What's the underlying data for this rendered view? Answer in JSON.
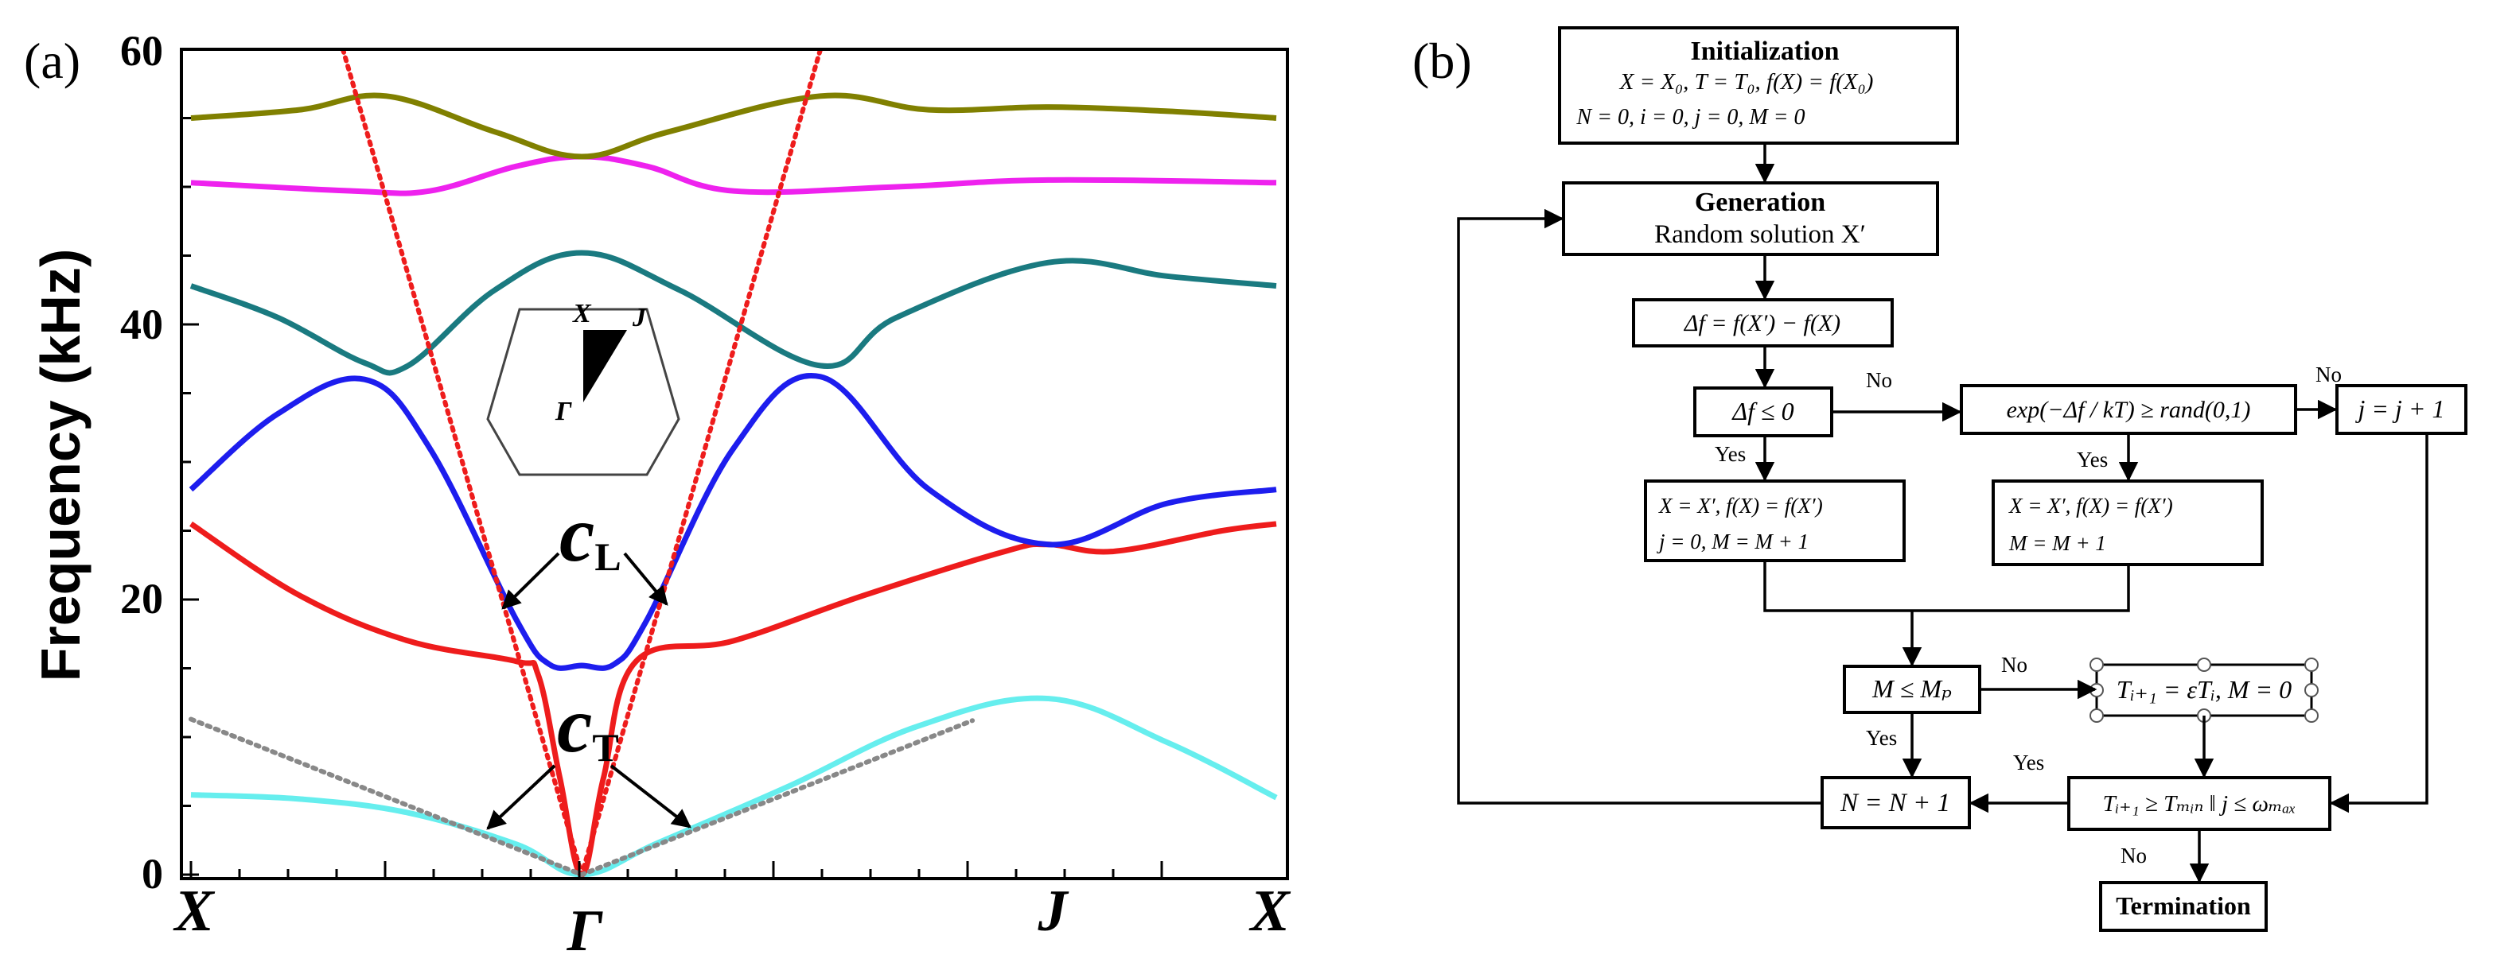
{
  "panel_a": {
    "label": "(a)",
    "ylabel": "Frequency (kHz)",
    "yticks": [
      "0",
      "20",
      "40",
      "60"
    ],
    "xticks": [
      "X",
      "Γ",
      "J",
      "X"
    ],
    "inset": {
      "X": "X",
      "J": "J",
      "G": "Γ"
    },
    "cL": {
      "main": "c",
      "sub": "L"
    },
    "cT": {
      "main": "c",
      "sub": "T"
    }
  },
  "chart_data": {
    "type": "line",
    "title": "",
    "xlabel": "",
    "ylabel": "Frequency (kHz)",
    "ylim": [
      0,
      60
    ],
    "xlim": [
      0,
      1
    ],
    "x_ticks": [
      {
        "label": "X",
        "x": 0.0
      },
      {
        "label": "Γ",
        "x": 0.36
      },
      {
        "label": "J",
        "x": 0.79
      },
      {
        "label": "X",
        "x": 1.0
      }
    ],
    "series": [
      {
        "name": "band1",
        "color": "#66eeee",
        "points": [
          [
            0,
            5.8
          ],
          [
            0.1,
            5.5
          ],
          [
            0.2,
            4.5
          ],
          [
            0.3,
            2.2
          ],
          [
            0.36,
            0
          ],
          [
            0.43,
            2.3
          ],
          [
            0.55,
            6.4
          ],
          [
            0.67,
            10.8
          ],
          [
            0.79,
            12.8
          ],
          [
            0.9,
            9.6
          ],
          [
            1.0,
            5.6
          ]
        ]
      },
      {
        "name": "band2",
        "color": "#ee1c1c",
        "points": [
          [
            0,
            25.5
          ],
          [
            0.1,
            20.3
          ],
          [
            0.2,
            17
          ],
          [
            0.3,
            15.5
          ],
          [
            0.32,
            14.5
          ],
          [
            0.34,
            7
          ],
          [
            0.36,
            0
          ],
          [
            0.38,
            7
          ],
          [
            0.41,
            15.5
          ],
          [
            0.5,
            17
          ],
          [
            0.62,
            20.3
          ],
          [
            0.75,
            23.5
          ],
          [
            0.79,
            24
          ],
          [
            0.85,
            23.5
          ],
          [
            0.95,
            25
          ],
          [
            1.0,
            25.5
          ]
        ]
      },
      {
        "name": "band3",
        "color": "#1d1dee",
        "points": [
          [
            0,
            28
          ],
          [
            0.08,
            33.5
          ],
          [
            0.16,
            36
          ],
          [
            0.22,
            31
          ],
          [
            0.3,
            18.5
          ],
          [
            0.33,
            15.3
          ],
          [
            0.36,
            15.2
          ],
          [
            0.39,
            15.3
          ],
          [
            0.42,
            18.5
          ],
          [
            0.5,
            31
          ],
          [
            0.58,
            36.2
          ],
          [
            0.68,
            28
          ],
          [
            0.79,
            24
          ],
          [
            0.9,
            27
          ],
          [
            1.0,
            28
          ]
        ]
      },
      {
        "name": "band4",
        "color": "#1a7a80",
        "points": [
          [
            0,
            42.8
          ],
          [
            0.08,
            40.5
          ],
          [
            0.16,
            37.2
          ],
          [
            0.2,
            37
          ],
          [
            0.28,
            42.5
          ],
          [
            0.36,
            45.2
          ],
          [
            0.45,
            42.5
          ],
          [
            0.58,
            37
          ],
          [
            0.65,
            40.5
          ],
          [
            0.79,
            44.5
          ],
          [
            0.9,
            43.5
          ],
          [
            1.0,
            42.8
          ]
        ]
      },
      {
        "name": "band5",
        "color": "#ee22ee",
        "points": [
          [
            0,
            50.3
          ],
          [
            0.15,
            49.7
          ],
          [
            0.22,
            49.7
          ],
          [
            0.3,
            51.5
          ],
          [
            0.36,
            52.2
          ],
          [
            0.42,
            51.5
          ],
          [
            0.5,
            49.7
          ],
          [
            0.65,
            50
          ],
          [
            0.79,
            50.5
          ],
          [
            1.0,
            50.3
          ]
        ]
      },
      {
        "name": "band6",
        "color": "#808000",
        "points": [
          [
            0,
            55
          ],
          [
            0.1,
            55.6
          ],
          [
            0.18,
            56.6
          ],
          [
            0.28,
            54
          ],
          [
            0.36,
            52.2
          ],
          [
            0.44,
            54
          ],
          [
            0.58,
            56.6
          ],
          [
            0.68,
            55.6
          ],
          [
            0.79,
            55.8
          ],
          [
            0.9,
            55.5
          ],
          [
            1.0,
            55
          ]
        ]
      },
      {
        "name": "cL",
        "color": "#ee1c1c",
        "style": "dotted",
        "points": [
          [
            0.14,
            60
          ],
          [
            0.36,
            0
          ],
          [
            0.58,
            60
          ]
        ]
      },
      {
        "name": "cT",
        "color": "#888888",
        "style": "dotted",
        "points": [
          [
            0,
            11.3
          ],
          [
            0.36,
            0
          ],
          [
            0.72,
            11.2
          ]
        ]
      }
    ]
  },
  "panel_b": {
    "label": "(b)",
    "init": {
      "title": "Initialization",
      "line1": "X = X₀,  T = T₀,   f(X) = f(X₀)",
      "line2": "N = 0, i = 0, j = 0, M = 0"
    },
    "gen": {
      "title": "Generation",
      "line": "Random solution X′"
    },
    "delta": "Δf = f(X′) − f(X)",
    "cond1": "Δf ≤ 0",
    "cond2": "exp(−Δf / kT) ≥ rand(0,1)",
    "jinc": "j = j + 1",
    "acc1": {
      "line1": "X = X′,   f(X) = f(X′)",
      "line2": "j = 0,      M = M + 1"
    },
    "acc2": {
      "line1": "X = X′,   f(X) = f(X′)",
      "line2": "M = M + 1"
    },
    "cond3": "M ≤ Mₚ",
    "cool": "Tᵢ₊₁ = εTᵢ, M = 0",
    "cond4": "Tᵢ₊₁ ≥ Tₘᵢₙ ‖ j ≤ ωₘₐₓ",
    "ninc": "N = N + 1",
    "term": "Termination",
    "labels": {
      "no": "No",
      "yes": "Yes"
    }
  }
}
